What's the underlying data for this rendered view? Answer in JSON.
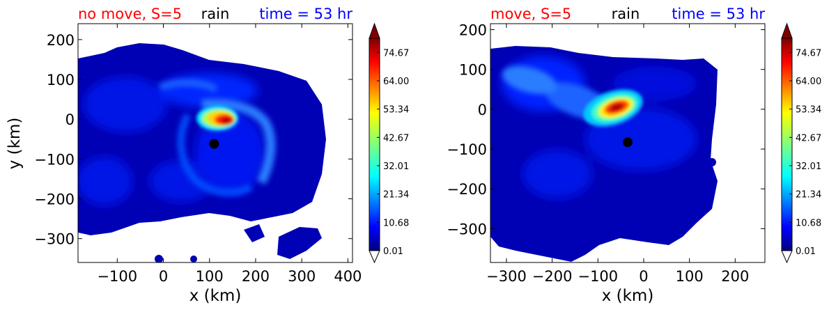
{
  "figure": {
    "colorbar_max_arrow": "extend-max",
    "colorbar_min_arrow": "extend-min"
  },
  "chart_data": [
    {
      "type": "contour",
      "variable": "rain",
      "title_left": "no move, S=5",
      "title_center": "rain",
      "title_right": "time = 53 hr",
      "title_colors": {
        "left": "#ff0000",
        "center": "#000000",
        "right": "#0000ff"
      },
      "xlabel": "x (km)",
      "ylabel": "y (km)",
      "xlim": [
        -185,
        410
      ],
      "ylim": [
        -360,
        240
      ],
      "xticks": [
        -100,
        0,
        100,
        200,
        300,
        400
      ],
      "xtick_labels": [
        "−100",
        "0",
        "100",
        "200",
        "300",
        "400"
      ],
      "yticks": [
        200,
        100,
        0,
        -100,
        -200,
        -300
      ],
      "ytick_labels": [
        "200",
        "100",
        "0",
        "−100",
        "−200",
        "−300"
      ],
      "center_marker": {
        "x": 110,
        "y": -62
      },
      "rain_max_location": {
        "x": 135,
        "y": -5
      },
      "colormap": "jet",
      "colorbar_ticks": [
        "74.67",
        "64.00",
        "53.34",
        "42.67",
        "32.01",
        "21.34",
        "10.68",
        "0.01"
      ],
      "colorbar_range": [
        0.01,
        80
      ]
    },
    {
      "type": "contour",
      "variable": "rain",
      "title_left": "move, S=5",
      "title_center": "rain",
      "title_right": "time = 53 hr",
      "title_colors": {
        "left": "#ff0000",
        "center": "#000000",
        "right": "#0000ff"
      },
      "xlabel": "x (km)",
      "ylabel": "",
      "xlim": [
        -335,
        265
      ],
      "ylim": [
        -385,
        215
      ],
      "xticks": [
        -300,
        -200,
        -100,
        0,
        100,
        200
      ],
      "xtick_labels": [
        "−300",
        "−200",
        "−100",
        "0",
        "100",
        "200"
      ],
      "yticks": [
        200,
        100,
        0,
        -100,
        -200,
        -300
      ],
      "ytick_labels": [
        "200",
        "100",
        "0",
        "−100",
        "−200",
        "−300"
      ],
      "center_marker": {
        "x": -35,
        "y": -83
      },
      "rain_max_location": {
        "x": -50,
        "y": 5
      },
      "colormap": "jet",
      "colorbar_ticks": [
        "74.67",
        "64.00",
        "53.34",
        "42.67",
        "32.01",
        "21.34",
        "10.68",
        "0.01"
      ],
      "colorbar_range": [
        0.01,
        80
      ]
    }
  ]
}
